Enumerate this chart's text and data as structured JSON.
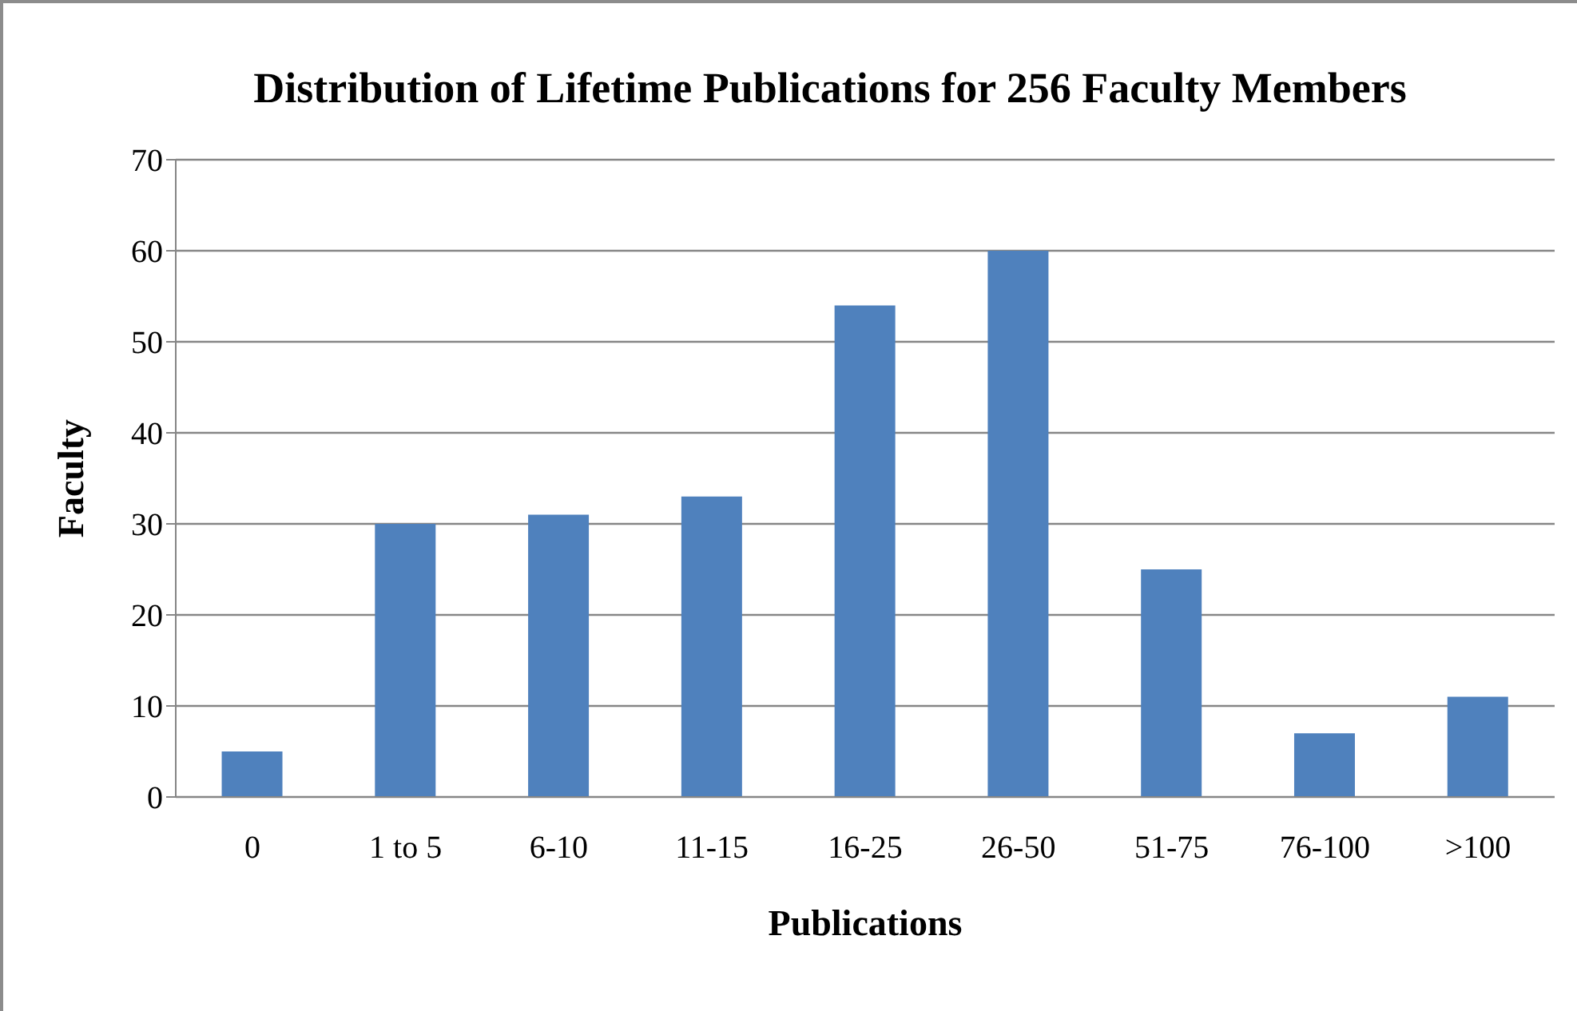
{
  "chart_data": {
    "type": "bar",
    "title": "Distribution of Lifetime Publications for 256 Faculty Members",
    "xlabel": "Publications",
    "ylabel": "Faculty",
    "categories": [
      "0",
      "1 to 5",
      "6-10",
      "11-15",
      "16-25",
      "26-50",
      "51-75",
      "76-100",
      ">100"
    ],
    "values": [
      5,
      30,
      31,
      33,
      54,
      60,
      25,
      7,
      11
    ],
    "color": "#4f81bd",
    "ylim": [
      0,
      70
    ],
    "yticks": [
      0,
      10,
      20,
      30,
      40,
      50,
      60,
      70
    ],
    "grid": "y"
  }
}
